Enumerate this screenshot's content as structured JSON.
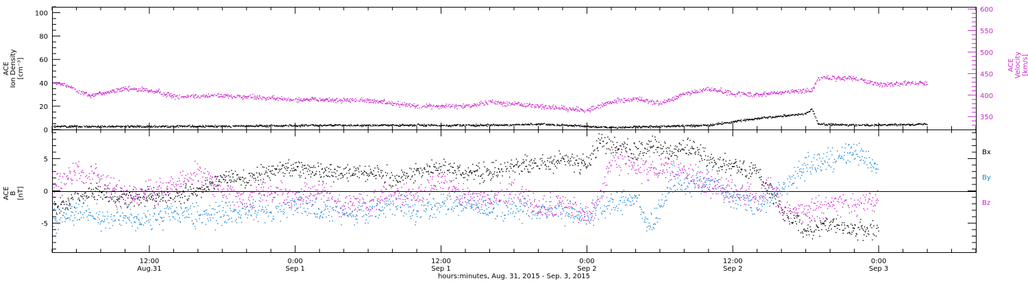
{
  "colors": {
    "axis": "#000000",
    "velocity": "#cc22cc",
    "bx": "#000000",
    "by": "#1a85d6",
    "bz": "#cc22cc"
  },
  "top_panel": {
    "left_label": [
      "ACE",
      "Ion Density",
      "[cm⁻³]"
    ],
    "right_label": [
      "ACE",
      "Velocity",
      "[km/s]"
    ]
  },
  "bottom_panel": {
    "left_label": [
      "ACE",
      "B",
      "[nT]"
    ],
    "legend": [
      "Bx",
      "By",
      "Bz"
    ]
  },
  "xaxis_title": "hours:minutes, Aug. 31, 2015 - Sep. 3, 2015",
  "xticks": [
    {
      "h": 12,
      "l1": "12:00",
      "l2": "Aug.31"
    },
    {
      "h": 24,
      "l1": "0:00",
      "l2": "Sep 1"
    },
    {
      "h": 36,
      "l1": "12:00",
      "l2": "Sep 1"
    },
    {
      "h": 48,
      "l1": "0:00",
      "l2": "Sep 2"
    },
    {
      "h": 60,
      "l1": "12:00",
      "l2": "Sep 2"
    },
    {
      "h": 72,
      "l1": "0:00",
      "l2": "Sep 3"
    }
  ],
  "chart_data": [
    {
      "type": "scatter",
      "title": "",
      "xlabel": "hours:minutes, Aug. 31, 2015 - Sep. 3, 2015",
      "xlim_hours": [
        4,
        80
      ],
      "x_unit": "hours since Aug. 31, 2015 0:00",
      "ylim_left": [
        0,
        105
      ],
      "ylim_right": [
        320,
        605
      ],
      "left_ticks": [
        0,
        20,
        40,
        60,
        80,
        100
      ],
      "right_ticks": [
        350,
        400,
        450,
        500,
        550,
        600
      ],
      "series": [
        {
          "name": "Ion Density",
          "axis": "left",
          "color": "#000000",
          "noise": 0.6,
          "points": [
            [
              4,
              3
            ],
            [
              10,
              3
            ],
            [
              16,
              3
            ],
            [
              22,
              3.5
            ],
            [
              28,
              4
            ],
            [
              34,
              4
            ],
            [
              40,
              4
            ],
            [
              44,
              5
            ],
            [
              48,
              3
            ],
            [
              50,
              2
            ],
            [
              54,
              3
            ],
            [
              56,
              3.5
            ],
            [
              58,
              4
            ],
            [
              62,
              10
            ],
            [
              64,
              12
            ],
            [
              66,
              14
            ],
            [
              66.5,
              18
            ],
            [
              67,
              5
            ],
            [
              70,
              4
            ],
            [
              76,
              5
            ]
          ]
        },
        {
          "name": "Velocity",
          "axis": "right",
          "color": "#cc22cc",
          "noise": 4,
          "points": [
            [
              4,
              428
            ],
            [
              5,
              425
            ],
            [
              7,
              400
            ],
            [
              10,
              415
            ],
            [
              12,
              412
            ],
            [
              14,
              398
            ],
            [
              18,
              400
            ],
            [
              22,
              393
            ],
            [
              26,
              390
            ],
            [
              30,
              388
            ],
            [
              34,
              376
            ],
            [
              38,
              375
            ],
            [
              40,
              385
            ],
            [
              44,
              375
            ],
            [
              46,
              370
            ],
            [
              48,
              365
            ],
            [
              50,
              385
            ],
            [
              52,
              393
            ],
            [
              54,
              380
            ],
            [
              56,
              403
            ],
            [
              58,
              415
            ],
            [
              60,
              405
            ],
            [
              62,
              402
            ],
            [
              66,
              412
            ],
            [
              66.5,
              412
            ],
            [
              67,
              440
            ],
            [
              70,
              440
            ],
            [
              72,
              425
            ],
            [
              76,
              430
            ]
          ]
        }
      ]
    },
    {
      "type": "scatter",
      "title": "",
      "xlim_hours": [
        4,
        80
      ],
      "x_unit": "hours since Aug. 31, 2015 0:00",
      "ylim": [
        -9.5,
        9.5
      ],
      "y_ticks": [
        -5,
        0,
        5
      ],
      "zero_line": true,
      "series": [
        {
          "name": "Bx",
          "color": "#000000",
          "noise": 1.0,
          "points": [
            [
              4,
              -2
            ],
            [
              6,
              -1
            ],
            [
              8,
              0
            ],
            [
              10,
              -1
            ],
            [
              12,
              -1
            ],
            [
              14,
              -1
            ],
            [
              16,
              0
            ],
            [
              18,
              2
            ],
            [
              20,
              2
            ],
            [
              22,
              3
            ],
            [
              24,
              4
            ],
            [
              26,
              3
            ],
            [
              28,
              3
            ],
            [
              30,
              3
            ],
            [
              32,
              2
            ],
            [
              34,
              3
            ],
            [
              36,
              4
            ],
            [
              38,
              3
            ],
            [
              40,
              3
            ],
            [
              42,
              4
            ],
            [
              44,
              4
            ],
            [
              46,
              5
            ],
            [
              48,
              4
            ],
            [
              49,
              8
            ],
            [
              50,
              7
            ],
            [
              51,
              7
            ],
            [
              52,
              6
            ],
            [
              53,
              7
            ],
            [
              55,
              6
            ],
            [
              56,
              7
            ],
            [
              58,
              5
            ],
            [
              60,
              4
            ],
            [
              62,
              3
            ],
            [
              64,
              -3
            ],
            [
              66,
              -6
            ],
            [
              68,
              -5
            ],
            [
              70,
              -6
            ],
            [
              72,
              -6
            ]
          ]
        },
        {
          "name": "By",
          "color": "#1a85d6",
          "noise": 1.3,
          "points": [
            [
              4,
              -4.5
            ],
            [
              6,
              -3
            ],
            [
              8,
              -4
            ],
            [
              10,
              -4
            ],
            [
              12,
              -4.5
            ],
            [
              14,
              -3.5
            ],
            [
              16,
              -4
            ],
            [
              18,
              -3.5
            ],
            [
              20,
              -3
            ],
            [
              22,
              -3
            ],
            [
              24,
              -2
            ],
            [
              26,
              -3
            ],
            [
              28,
              -3
            ],
            [
              30,
              -3
            ],
            [
              32,
              -2
            ],
            [
              34,
              -3
            ],
            [
              36,
              -2
            ],
            [
              38,
              -2
            ],
            [
              40,
              -2.5
            ],
            [
              42,
              -3
            ],
            [
              44,
              -3
            ],
            [
              46,
              -3
            ],
            [
              48,
              -4
            ],
            [
              49,
              -3
            ],
            [
              50,
              -2
            ],
            [
              52,
              -1
            ],
            [
              53,
              -6
            ],
            [
              54,
              -3
            ],
            [
              55,
              2
            ],
            [
              56,
              1
            ],
            [
              58,
              2
            ],
            [
              60,
              -1
            ],
            [
              62,
              -2
            ],
            [
              64,
              0
            ],
            [
              66,
              4
            ],
            [
              68,
              5
            ],
            [
              70,
              6
            ],
            [
              72,
              4
            ]
          ]
        },
        {
          "name": "Bz",
          "color": "#cc22cc",
          "noise": 1.3,
          "points": [
            [
              4,
              1
            ],
            [
              6,
              3
            ],
            [
              8,
              2
            ],
            [
              10,
              -1
            ],
            [
              12,
              0
            ],
            [
              14,
              1
            ],
            [
              16,
              3
            ],
            [
              18,
              0
            ],
            [
              20,
              -1
            ],
            [
              22,
              0
            ],
            [
              24,
              -1
            ],
            [
              26,
              0
            ],
            [
              28,
              -2
            ],
            [
              30,
              -2
            ],
            [
              32,
              0
            ],
            [
              34,
              -1
            ],
            [
              36,
              2
            ],
            [
              38,
              -1
            ],
            [
              40,
              -1
            ],
            [
              42,
              0
            ],
            [
              44,
              -3
            ],
            [
              46,
              -2
            ],
            [
              48,
              -4
            ],
            [
              49,
              -1
            ],
            [
              50,
              5
            ],
            [
              52,
              4
            ],
            [
              54,
              3
            ],
            [
              56,
              3
            ],
            [
              58,
              1
            ],
            [
              60,
              0
            ],
            [
              62,
              -1
            ],
            [
              63,
              1
            ],
            [
              64,
              -3
            ],
            [
              66,
              -3
            ],
            [
              68,
              -2
            ],
            [
              70,
              -2
            ],
            [
              72,
              -1
            ]
          ]
        }
      ]
    }
  ]
}
